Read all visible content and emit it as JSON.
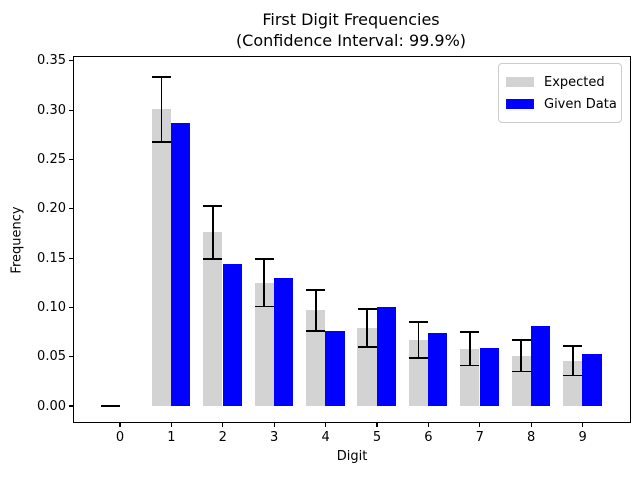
{
  "chart_data": {
    "type": "bar",
    "title": "First Digit Frequencies",
    "subtitle": "(Confidence Interval: 99.9%)",
    "xlabel": "Digit",
    "ylabel": "Frequency",
    "categories": [
      "0",
      "1",
      "2",
      "3",
      "4",
      "5",
      "6",
      "7",
      "8",
      "9"
    ],
    "series": [
      {
        "name": "Expected",
        "color": "#d3d3d3",
        "values": [
          0,
          0.301,
          0.176,
          0.125,
          0.097,
          0.079,
          0.067,
          0.058,
          0.051,
          0.046
        ]
      },
      {
        "name": "Given Data",
        "color": "#0000ff",
        "values": [
          0,
          0.287,
          0.144,
          0.13,
          0.076,
          0.1,
          0.074,
          0.059,
          0.081,
          0.053
        ]
      }
    ],
    "error_bars": {
      "attached_to_series": "Expected",
      "color": "#000000",
      "confidence": "99.9%",
      "half_widths": [
        0,
        0.033,
        0.027,
        0.024,
        0.021,
        0.019,
        0.018,
        0.017,
        0.016,
        0.015
      ]
    },
    "y_ticks": [
      {
        "value": 0.0,
        "label": "0.00"
      },
      {
        "value": 0.05,
        "label": "0.05"
      },
      {
        "value": 0.1,
        "label": "0.10"
      },
      {
        "value": 0.15,
        "label": "0.15"
      },
      {
        "value": 0.2,
        "label": "0.20"
      },
      {
        "value": 0.25,
        "label": "0.25"
      },
      {
        "value": 0.3,
        "label": "0.30"
      },
      {
        "value": 0.35,
        "label": "0.35"
      }
    ],
    "ylim": [
      -0.0165,
      0.3535
    ],
    "grid": false,
    "legend": {
      "position": "upper right",
      "entries": [
        "Expected",
        "Given Data"
      ]
    }
  }
}
